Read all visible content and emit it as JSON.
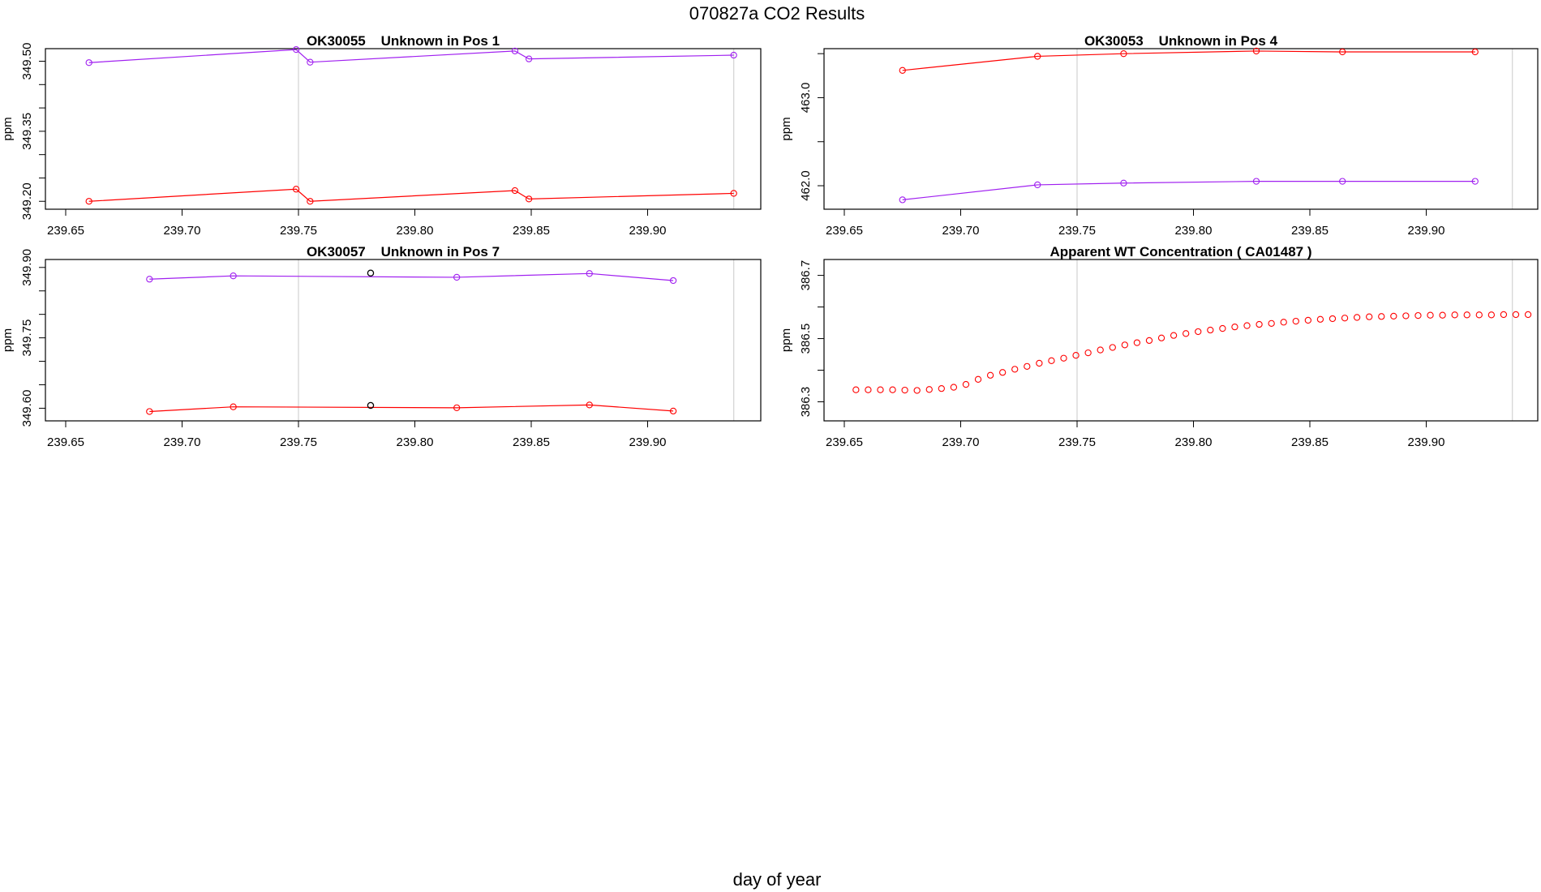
{
  "page": {
    "title": "070827a  CO2 Results",
    "xlabel": "day of year"
  },
  "colors": {
    "purple": "#a020f0",
    "red": "#ff0000",
    "black": "#000000",
    "refline": "#d3d3d3",
    "frame": "#000000"
  },
  "chart_data": [
    {
      "type": "line",
      "title": "OK30055    Unknown in Pos 1",
      "ylabel": "ppm",
      "xlim": [
        239.65,
        239.94
      ],
      "ylim": [
        349.19,
        349.52
      ],
      "xticks": [
        "239.65",
        "239.70",
        "239.75",
        "239.80",
        "239.85",
        "239.90"
      ],
      "yticks": [
        "349.20",
        "349.35",
        "349.50"
      ],
      "ref_lines_x": [
        239.75,
        239.937
      ],
      "series": [
        {
          "color": "purple",
          "x": [
            239.66,
            239.749,
            239.755,
            239.843,
            239.849,
            239.937
          ],
          "y": [
            349.497,
            349.525,
            349.498,
            349.522,
            349.505,
            349.513
          ]
        },
        {
          "color": "red",
          "x": [
            239.66,
            239.749,
            239.755,
            239.843,
            239.849,
            239.937
          ],
          "y": [
            349.2,
            349.226,
            349.2,
            349.223,
            349.205,
            349.217
          ]
        }
      ]
    },
    {
      "type": "line",
      "title": "OK30053    Unknown in Pos 4",
      "ylabel": "ppm",
      "xlim": [
        239.65,
        239.94
      ],
      "ylim": [
        461.77,
        463.52
      ],
      "xticks": [
        "239.65",
        "239.70",
        "239.75",
        "239.80",
        "239.85",
        "239.90"
      ],
      "yticks": [
        "462.0",
        "463.0"
      ],
      "ref_lines_x": [
        239.75,
        239.937
      ],
      "series": [
        {
          "color": "red",
          "x": [
            239.675,
            239.733,
            239.77,
            239.827,
            239.864,
            239.921
          ],
          "y": [
            463.31,
            463.47,
            463.5,
            463.53,
            463.52,
            463.52
          ]
        },
        {
          "color": "purple",
          "x": [
            239.675,
            239.733,
            239.77,
            239.827,
            239.864,
            239.921
          ],
          "y": [
            461.84,
            462.01,
            462.03,
            462.05,
            462.05,
            462.05
          ]
        }
      ]
    },
    {
      "type": "line",
      "title": "OK30057    Unknown in Pos 7",
      "ylabel": "ppm",
      "xlim": [
        239.65,
        239.94
      ],
      "ylim": [
        349.58,
        349.91
      ],
      "xticks": [
        "239.65",
        "239.70",
        "239.75",
        "239.80",
        "239.85",
        "239.90"
      ],
      "yticks": [
        "349.60",
        "349.75",
        "349.90"
      ],
      "ref_lines_x": [
        239.75,
        239.937
      ],
      "series": [
        {
          "color": "purple",
          "x": [
            239.686,
            239.722,
            239.818,
            239.875,
            239.911
          ],
          "y": [
            349.875,
            349.882,
            349.879,
            349.887,
            349.872
          ]
        },
        {
          "color": "red",
          "x": [
            239.686,
            239.722,
            239.818,
            239.875,
            239.911
          ],
          "y": [
            349.593,
            349.603,
            349.601,
            349.607,
            349.594
          ]
        }
      ],
      "points": [
        {
          "color": "black",
          "x": [
            239.781,
            239.781
          ],
          "y": [
            349.888,
            349.606
          ]
        }
      ]
    },
    {
      "type": "scatter",
      "title": "Apparent WT Concentration ( CA01487 )",
      "ylabel": "ppm",
      "xlim": [
        239.65,
        239.94
      ],
      "ylim": [
        386.25,
        386.74
      ],
      "xticks": [
        "239.65",
        "239.70",
        "239.75",
        "239.80",
        "239.85",
        "239.90"
      ],
      "yticks": [
        "386.3",
        "386.5",
        "386.7"
      ],
      "ref_lines_x": [
        239.75,
        239.937
      ],
      "series": [
        {
          "color": "red",
          "x_start": 239.655,
          "x_step": 0.00525,
          "y": [
            386.338,
            386.338,
            386.338,
            386.338,
            386.337,
            386.336,
            386.339,
            386.342,
            386.346,
            386.355,
            386.371,
            386.384,
            386.393,
            386.403,
            386.412,
            386.422,
            386.43,
            386.438,
            386.447,
            386.455,
            386.464,
            386.472,
            386.48,
            386.487,
            386.494,
            386.502,
            386.51,
            386.516,
            386.522,
            386.527,
            386.532,
            386.537,
            386.541,
            386.545,
            386.548,
            386.552,
            386.555,
            386.558,
            386.561,
            386.563,
            386.565,
            386.567,
            386.569,
            386.57,
            386.571,
            386.572,
            386.573,
            386.574,
            386.574,
            386.575,
            386.575,
            386.575,
            386.575,
            386.576,
            386.576,
            386.576
          ]
        }
      ]
    }
  ]
}
